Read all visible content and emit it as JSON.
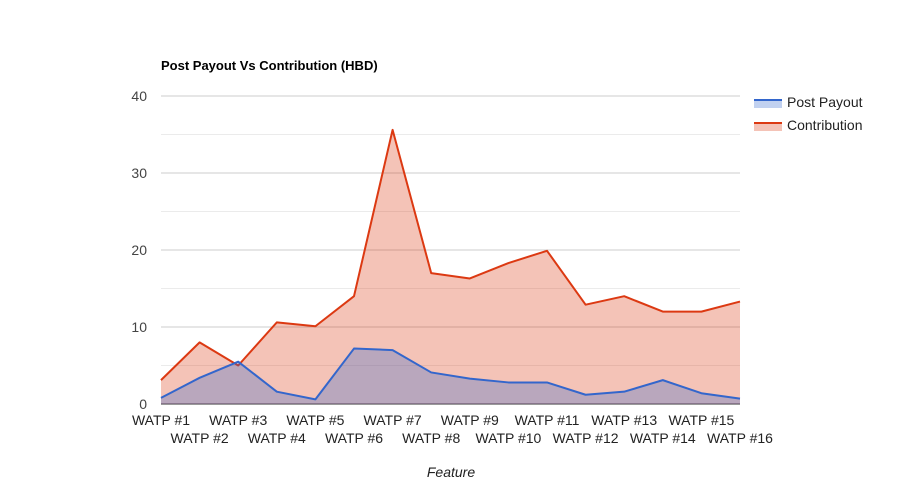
{
  "chart_data": {
    "type": "area",
    "title": "Post Payout Vs Contribution (HBD)",
    "xlabel": "Feature",
    "ylabel": "",
    "ylim": [
      0,
      40
    ],
    "yticks": [
      0,
      10,
      20,
      30,
      40
    ],
    "grid": true,
    "legend_position": "right",
    "categories": [
      "WATP #1",
      "WATP #2",
      "WATP #3",
      "WATP #4",
      "WATP #5",
      "WATP #6",
      "WATP #7",
      "WATP #8",
      "WATP #9",
      "WATP #10",
      "WATP #11",
      "WATP #12",
      "WATP #13",
      "WATP #14",
      "WATP #15",
      "WATP #16"
    ],
    "series": [
      {
        "name": "Post Payout",
        "color": "#3366cc",
        "values": [
          0.8,
          3.4,
          5.5,
          1.6,
          0.6,
          7.2,
          7.0,
          4.1,
          3.3,
          2.8,
          2.8,
          1.2,
          1.6,
          3.1,
          1.4,
          0.7
        ]
      },
      {
        "name": "Contribution",
        "color": "#dc3912",
        "values": [
          3.1,
          8.0,
          5.0,
          10.6,
          10.1,
          14.0,
          35.6,
          17.0,
          16.3,
          18.3,
          19.9,
          12.9,
          14.0,
          12.0,
          12.0,
          13.3
        ]
      }
    ]
  }
}
